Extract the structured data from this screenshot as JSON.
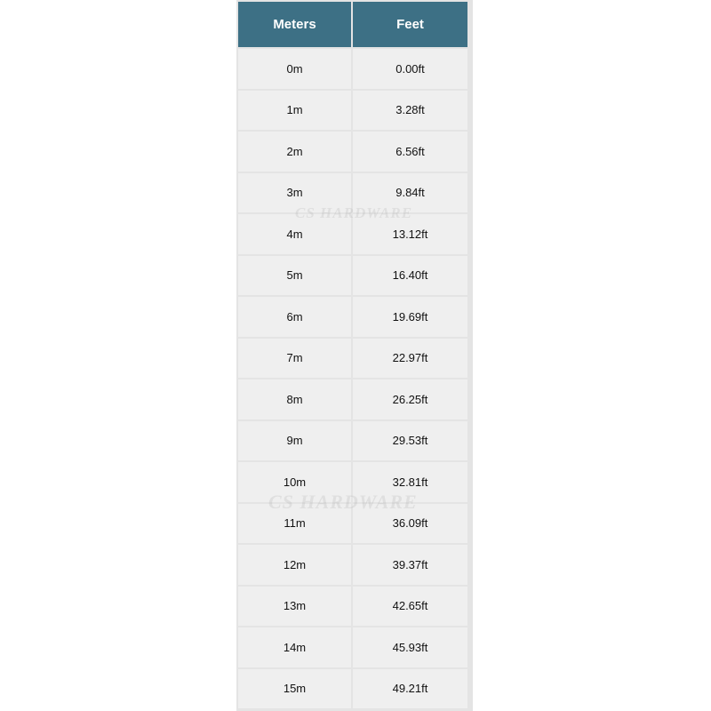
{
  "table": {
    "headers": [
      "Meters",
      "Feet"
    ],
    "rows": [
      [
        "0m",
        "0.00ft"
      ],
      [
        "1m",
        "3.28ft"
      ],
      [
        "2m",
        "6.56ft"
      ],
      [
        "3m",
        "9.84ft"
      ],
      [
        "4m",
        "13.12ft"
      ],
      [
        "5m",
        "16.40ft"
      ],
      [
        "6m",
        "19.69ft"
      ],
      [
        "7m",
        "22.97ft"
      ],
      [
        "8m",
        "26.25ft"
      ],
      [
        "9m",
        "29.53ft"
      ],
      [
        "10m",
        "32.81ft"
      ],
      [
        "11m",
        "36.09ft"
      ],
      [
        "12m",
        "39.37ft"
      ],
      [
        "13m",
        "42.65ft"
      ],
      [
        "14m",
        "45.93ft"
      ],
      [
        "15m",
        "49.21ft"
      ]
    ]
  },
  "watermark": "CS HARDWARE",
  "colors": {
    "header_bg": "#3d7085",
    "cell_bg": "#efefef"
  }
}
